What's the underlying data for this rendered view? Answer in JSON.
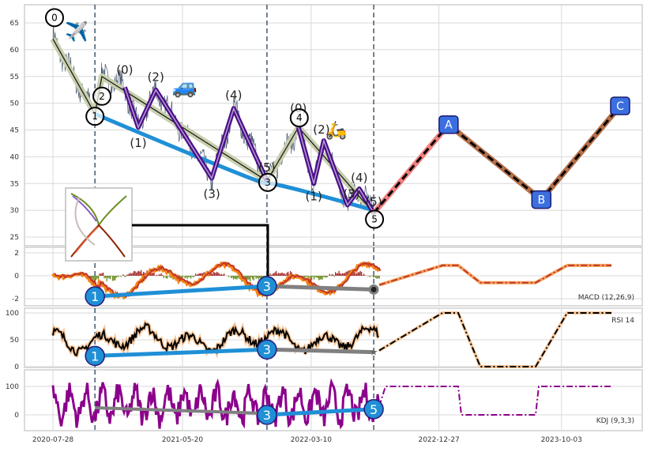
{
  "chart_data": {
    "type": "line",
    "x_tick_labels": [
      "2020-07-28",
      "2021-05-20",
      "2022-03-10",
      "2022-12-27",
      "2023-10-03"
    ],
    "price": {
      "y_ticks": [
        25,
        30,
        35,
        40,
        45,
        50,
        55,
        60,
        65
      ],
      "ylim": [
        23.5,
        68
      ],
      "main_waves": [
        {
          "label": "0",
          "date": "2020-07-28",
          "value": 62
        },
        {
          "label": "1",
          "date": "2020-11-01",
          "value": 48
        },
        {
          "label": "2",
          "date": "2020-11-17",
          "value": 55
        },
        {
          "label": "3",
          "date": "2021-11-29",
          "value": 35.5
        },
        {
          "label": "4",
          "date": "2022-02-09",
          "value": 45.5
        },
        {
          "label": "5",
          "date": "2022-07-31",
          "value": 29.5
        }
      ],
      "sub_waves": [
        {
          "label": "(0)",
          "date": "2021-01-08",
          "value": 53
        },
        {
          "label": "(1)",
          "date": "2021-02-08",
          "value": 45.5
        },
        {
          "label": "(2)",
          "date": "2021-03-20",
          "value": 52.5
        },
        {
          "label": "(3)",
          "date": "2021-07-26",
          "value": 36
        },
        {
          "label": "(4)",
          "date": "2021-09-14",
          "value": 49
        },
        {
          "label": "(5)",
          "date": "2021-11-29",
          "value": 35.5
        },
        {
          "label": "(0)",
          "date": "2022-02-09",
          "value": 45.5
        },
        {
          "label": "(1)",
          "date": "2022-03-16",
          "value": 35
        },
        {
          "label": "(2)",
          "date": "2022-04-08",
          "value": 43
        },
        {
          "label": "(3)",
          "date": "2022-06-01",
          "value": 31
        },
        {
          "label": "(4)",
          "date": "2022-06-28",
          "value": 34
        },
        {
          "label": "(5)",
          "date": "2022-07-31",
          "value": 29.5
        }
      ],
      "projection": [
        {
          "label": "",
          "date": "2022-07-31",
          "value": 29.5
        },
        {
          "label": "A",
          "date": "2023-01-18",
          "value": 46
        },
        {
          "label": "B",
          "date": "2023-08-18",
          "value": 32
        },
        {
          "label": "C",
          "date": "2024-02-14",
          "value": 49.5
        }
      ],
      "trendline": [
        {
          "date": "2020-11-01",
          "value": 48
        },
        {
          "date": "2021-11-29",
          "value": 35
        },
        {
          "date": "2022-07-31",
          "value": 30
        }
      ],
      "vlines": [
        "2020-11-01",
        "2021-11-29",
        "2022-07-31"
      ]
    },
    "macd": {
      "label": "MACD (12,26,9)",
      "y_ticks": [
        -2,
        0,
        2
      ],
      "ylim": [
        -2.2,
        2.1
      ],
      "divergence": [
        {
          "label": "1",
          "date": "2020-11-01",
          "value": -1.8
        },
        {
          "label": "3",
          "date": "2021-11-29",
          "value": -0.9
        },
        {
          "label": "",
          "date": "2022-07-31",
          "value": -1.2
        }
      ],
      "projection_levels": [
        0.9,
        -0.6,
        0.9
      ]
    },
    "rsi": {
      "label": "RSI 14",
      "y_ticks": [
        0,
        50,
        100
      ],
      "ylim": [
        -3,
        105
      ],
      "divergence": [
        {
          "label": "1",
          "date": "2020-11-01",
          "value": 20
        },
        {
          "label": "3",
          "date": "2021-11-29",
          "value": 32
        },
        {
          "label": "",
          "date": "2022-07-31",
          "value": 27
        }
      ],
      "projection_levels": [
        100,
        0,
        100
      ]
    },
    "kdj": {
      "label": "KDJ (9,3,3)",
      "y_ticks": [
        0,
        100
      ],
      "ylim": [
        -60,
        160
      ],
      "divergence_gray": [
        {
          "label": "",
          "date": "2020-11-01",
          "value": 25
        },
        {
          "label": "3",
          "date": "2021-11-29",
          "value": 5
        }
      ],
      "divergence_blue": [
        {
          "label": "3",
          "date": "2021-11-29",
          "value": 0
        },
        {
          "label": "5",
          "date": "2022-07-31",
          "value": 20
        }
      ],
      "projection_levels": [
        100,
        0,
        100
      ]
    }
  },
  "colors": {
    "price": "#4a5a70",
    "wave_band": "#c8cfae",
    "subwave": "#4b0f8a",
    "trend": "#1f8fd6",
    "proj_red": "#f08080",
    "proj_brown": "#b5704a",
    "macd": "#f58518",
    "signal": "#c0392b",
    "rsi": "#000000",
    "rsi_halo": "#f7c79b",
    "kdj": "#8b008b",
    "box": "#3b6fe0",
    "gray": "#808080"
  },
  "icons": [
    "airplane-icon",
    "car-icon",
    "scooter-icon",
    "wave-inset-image"
  ]
}
